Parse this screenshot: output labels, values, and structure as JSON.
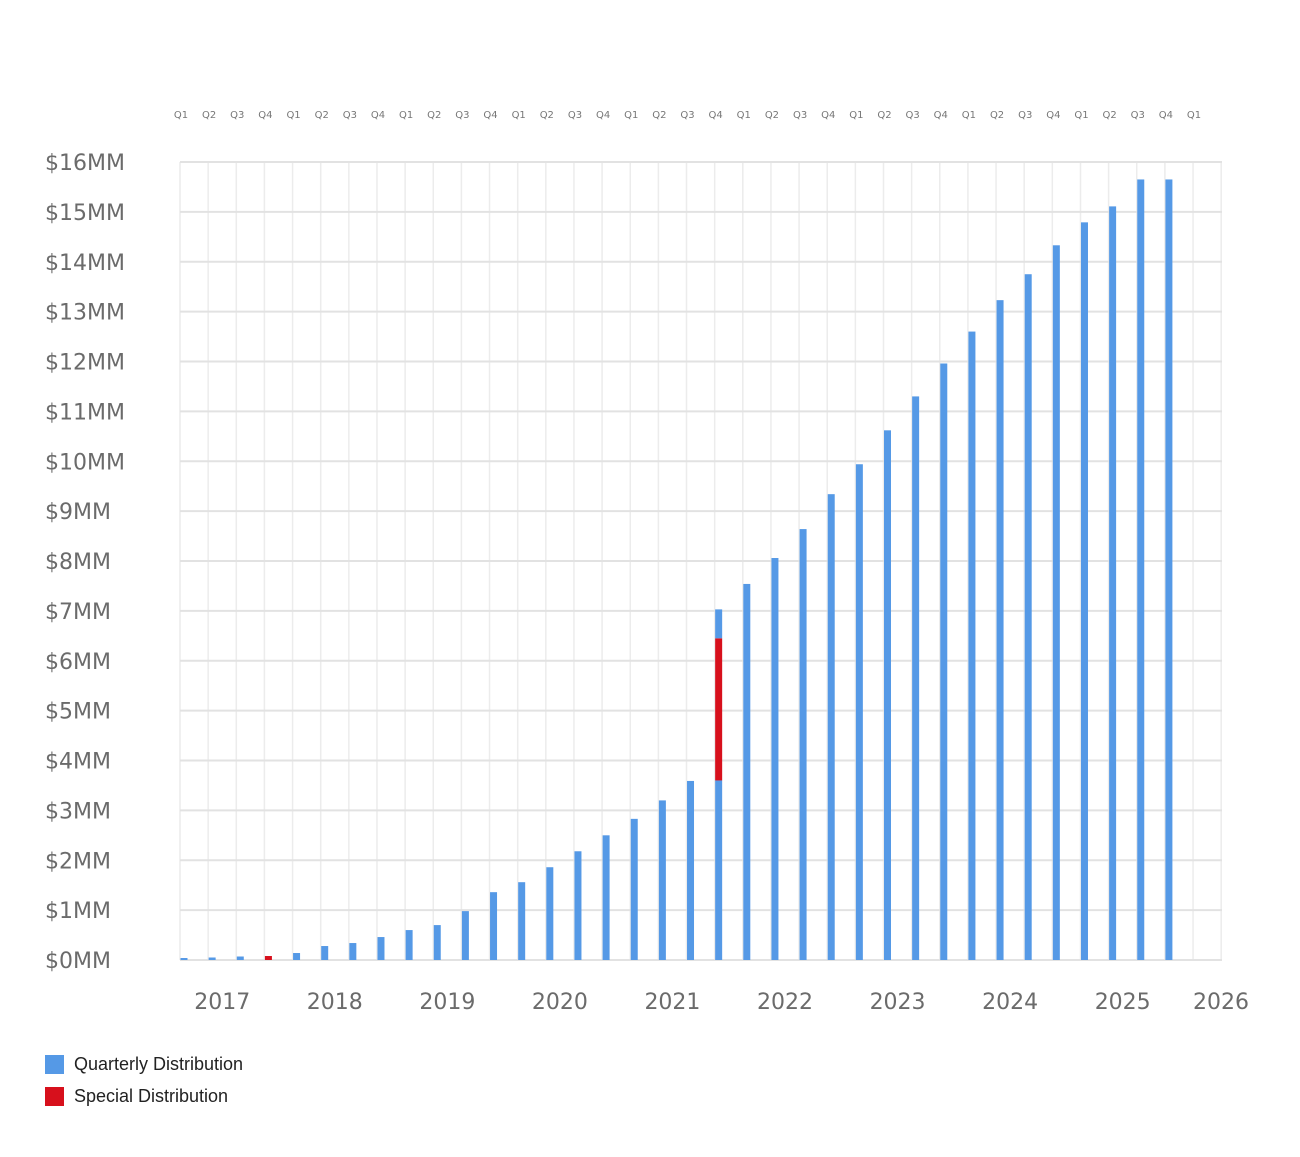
{
  "chart_data": {
    "type": "bar",
    "stacked": true,
    "title": "",
    "xlabel": "",
    "ylabel": "",
    "ylim": [
      0,
      16
    ],
    "y_ticks": [
      "$0MM",
      "$1MM",
      "$2MM",
      "$3MM",
      "$4MM",
      "$5MM",
      "$6MM",
      "$7MM",
      "$8MM",
      "$9MM",
      "$10MM",
      "$11MM",
      "$12MM",
      "$13MM",
      "$14MM",
      "$15MM",
      "$16MM"
    ],
    "quarter_labels": [
      "Q1",
      "Q2",
      "Q3",
      "Q4",
      "Q1",
      "Q2",
      "Q3",
      "Q4",
      "Q1",
      "Q2",
      "Q3",
      "Q4",
      "Q1",
      "Q2",
      "Q3",
      "Q4",
      "Q1",
      "Q2",
      "Q3",
      "Q4",
      "Q1",
      "Q2",
      "Q3",
      "Q4",
      "Q1",
      "Q2",
      "Q3",
      "Q4",
      "Q1",
      "Q2",
      "Q3",
      "Q4",
      "Q1",
      "Q2",
      "Q3",
      "Q4",
      "Q1"
    ],
    "year_labels": [
      "2017",
      "2018",
      "2019",
      "2020",
      "2021",
      "2022",
      "2023",
      "2024",
      "2025",
      "2026"
    ],
    "grid": true,
    "legend_position": "bottom-left",
    "colors": {
      "quarterly": "#5599e6",
      "special": "#d7101c"
    },
    "series": [
      {
        "name": "Quarterly Distribution",
        "key": "quarterly"
      },
      {
        "name": "Special Distribution",
        "key": "special"
      }
    ],
    "bars": [
      [
        [
          "quarterly",
          0.04
        ]
      ],
      [
        [
          "quarterly",
          0.05
        ]
      ],
      [
        [
          "quarterly",
          0.07
        ]
      ],
      [
        [
          "special",
          0.08
        ]
      ],
      [
        [
          "quarterly",
          0.14
        ]
      ],
      [
        [
          "quarterly",
          0.28
        ]
      ],
      [
        [
          "quarterly",
          0.34
        ]
      ],
      [
        [
          "quarterly",
          0.46
        ]
      ],
      [
        [
          "quarterly",
          0.6
        ]
      ],
      [
        [
          "quarterly",
          0.7
        ]
      ],
      [
        [
          "quarterly",
          0.98
        ]
      ],
      [
        [
          "quarterly",
          1.36
        ]
      ],
      [
        [
          "quarterly",
          1.56
        ]
      ],
      [
        [
          "quarterly",
          1.86
        ]
      ],
      [
        [
          "quarterly",
          2.18
        ]
      ],
      [
        [
          "quarterly",
          2.5
        ]
      ],
      [
        [
          "quarterly",
          2.83
        ]
      ],
      [
        [
          "quarterly",
          3.2
        ]
      ],
      [
        [
          "quarterly",
          3.59
        ]
      ],
      [
        [
          "quarterly",
          3.6
        ],
        [
          "special",
          2.85
        ],
        [
          "quarterly",
          0.58
        ]
      ],
      [
        [
          "quarterly",
          7.54
        ]
      ],
      [
        [
          "quarterly",
          8.06
        ]
      ],
      [
        [
          "quarterly",
          8.64
        ]
      ],
      [
        [
          "quarterly",
          9.34
        ]
      ],
      [
        [
          "quarterly",
          9.94
        ]
      ],
      [
        [
          "quarterly",
          10.62
        ]
      ],
      [
        [
          "quarterly",
          11.3
        ]
      ],
      [
        [
          "quarterly",
          11.96
        ]
      ],
      [
        [
          "quarterly",
          12.6
        ]
      ],
      [
        [
          "quarterly",
          13.23
        ]
      ],
      [
        [
          "quarterly",
          13.75
        ]
      ],
      [
        [
          "quarterly",
          14.33
        ]
      ],
      [
        [
          "quarterly",
          14.79
        ]
      ],
      [
        [
          "quarterly",
          15.11
        ]
      ],
      [
        [
          "quarterly",
          15.65
        ]
      ],
      [
        [
          "quarterly",
          15.65
        ]
      ]
    ]
  }
}
